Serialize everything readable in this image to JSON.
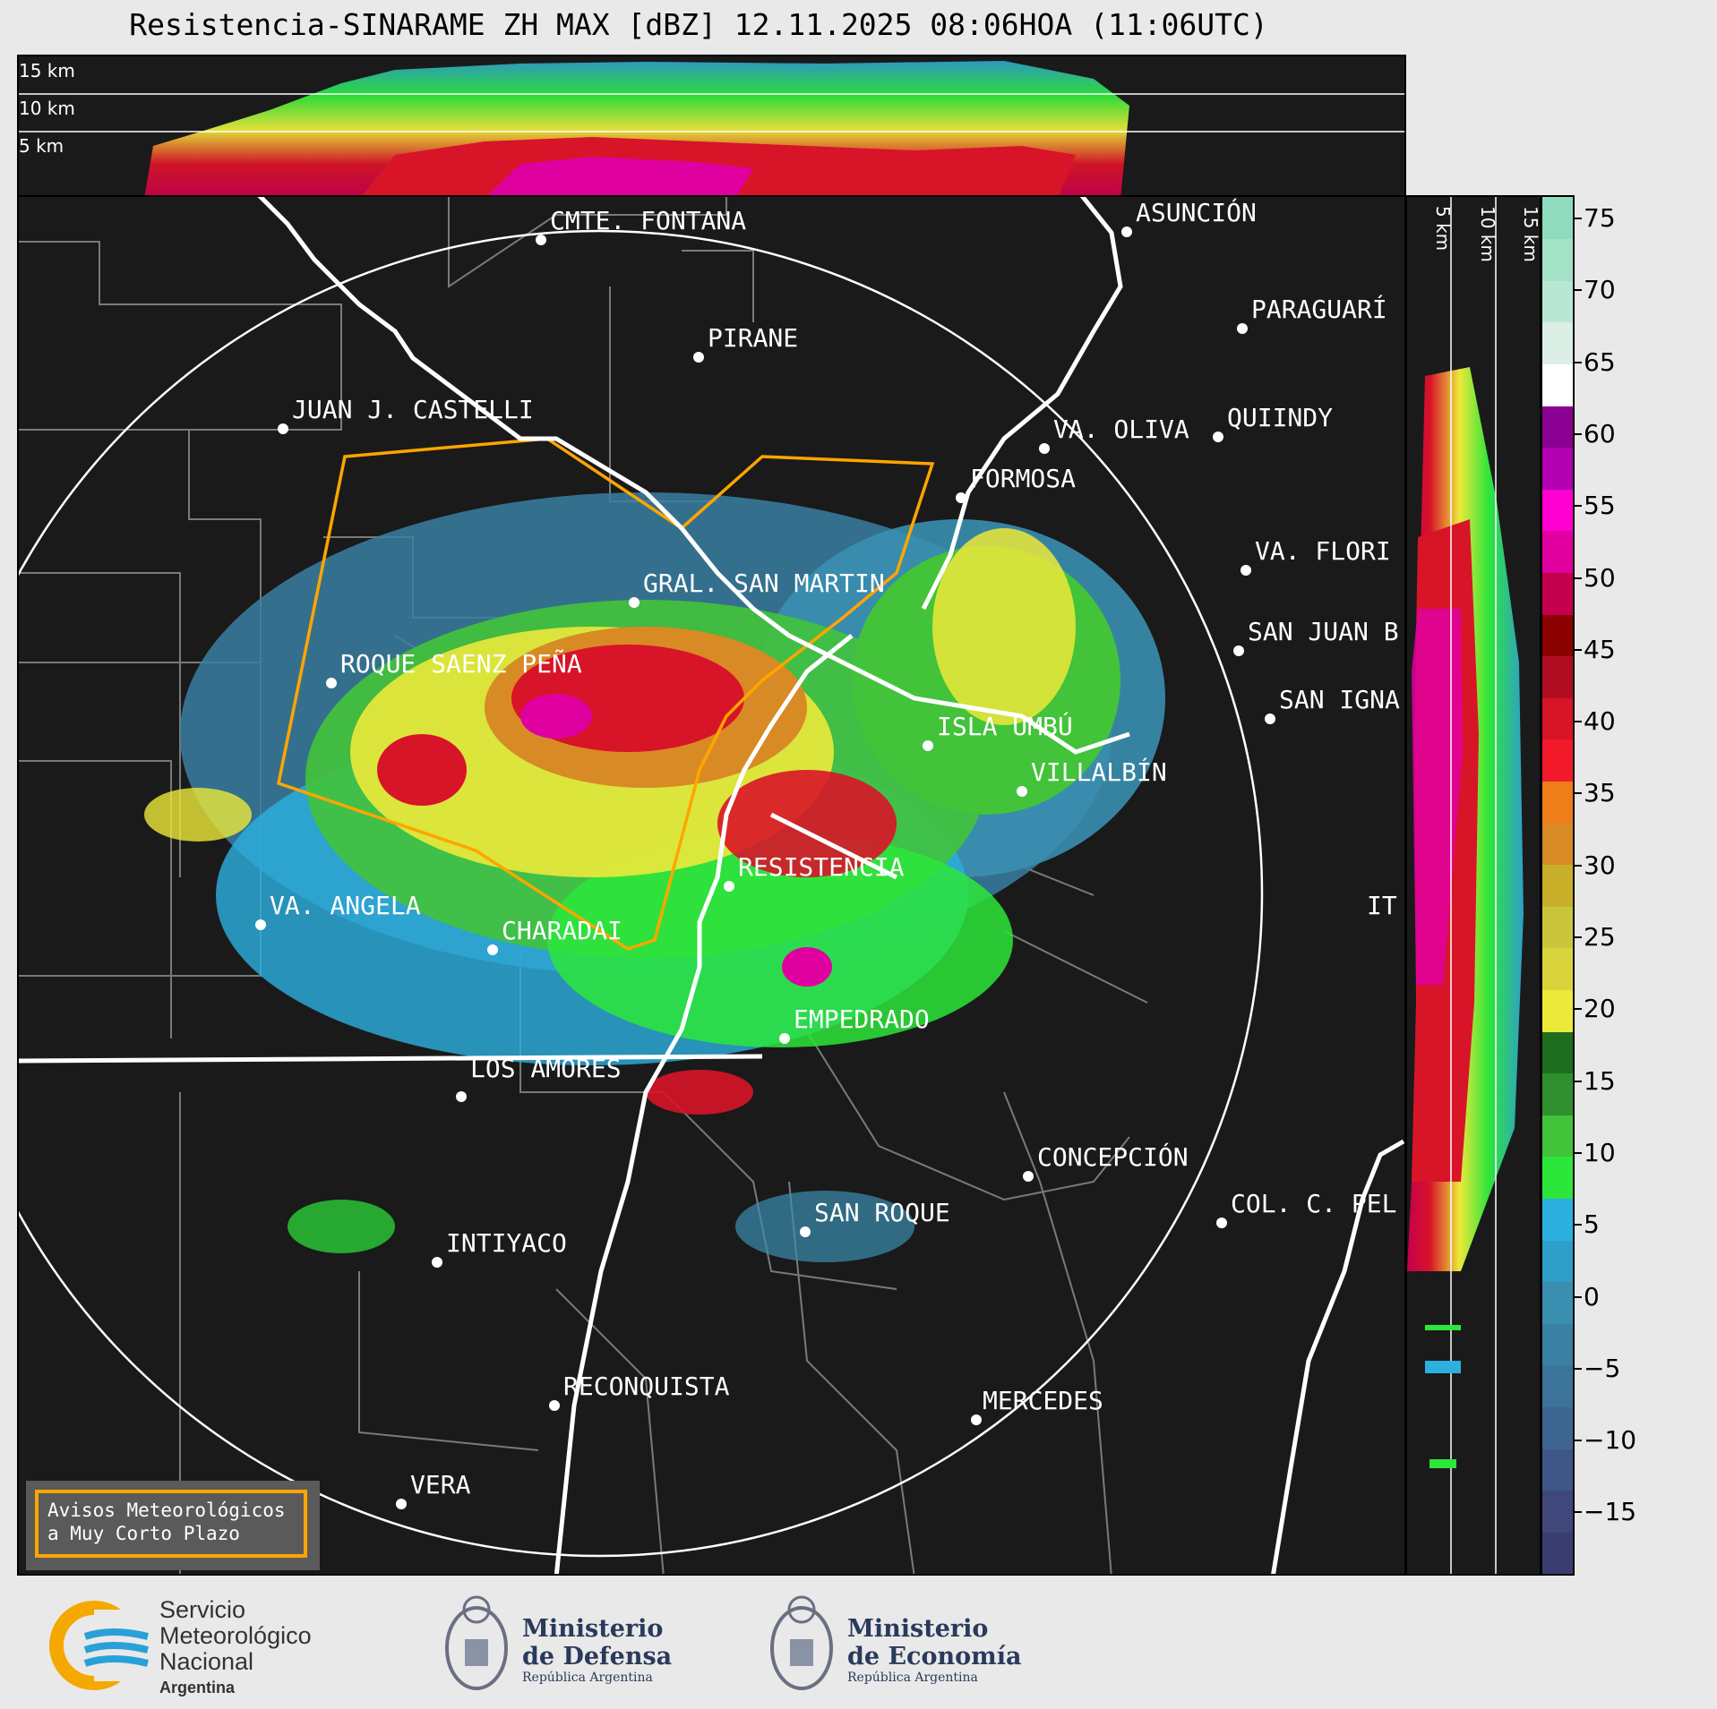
{
  "title": "Resistencia-SINARAME ZH MAX [dBZ] 12.11.2025 08:06HOA (11:06UTC)",
  "top_panel": {
    "height_labels": [
      "15 km",
      "10 km",
      "5 km"
    ]
  },
  "side_panel": {
    "height_labels": [
      "5 km",
      "10 km",
      "15 km"
    ]
  },
  "cities": [
    {
      "name": "CMTE. FONTANA"
    },
    {
      "name": "PIRANE"
    },
    {
      "name": "ASUNCIÓN"
    },
    {
      "name": "PARAGUARÍ"
    },
    {
      "name": "JUAN J. CASTELLI"
    },
    {
      "name": "VA. OLIVA"
    },
    {
      "name": "QUIINDY"
    },
    {
      "name": "FORMOSA"
    },
    {
      "name": "VA. FLORI"
    },
    {
      "name": "GRAL. SAN MARTIN"
    },
    {
      "name": "SAN JUAN B"
    },
    {
      "name": "ROQUE SAENZ PEÑA"
    },
    {
      "name": "SAN IGNA"
    },
    {
      "name": "ISLA UMBÚ"
    },
    {
      "name": "VILLALBÍN"
    },
    {
      "name": "RESISTENCIA"
    },
    {
      "name": "VA. ANGELA"
    },
    {
      "name": "CHARADAI"
    },
    {
      "name": "IT"
    },
    {
      "name": "EMPEDRADO"
    },
    {
      "name": "LOS AMORES"
    },
    {
      "name": "CONCEPCIÓN"
    },
    {
      "name": "SAN ROQUE"
    },
    {
      "name": "COL. C. PEL"
    },
    {
      "name": "INTIYACO"
    },
    {
      "name": "RECONQUISTA"
    },
    {
      "name": "MERCEDES"
    },
    {
      "name": "VERA"
    }
  ],
  "legend_box": {
    "line1": "Avisos Meteorológicos",
    "line2": "a Muy Corto Plazo"
  },
  "colorbar": {
    "unit": "dBZ",
    "ticks": [
      "75",
      "70",
      "65",
      "60",
      "55",
      "50",
      "45",
      "40",
      "35",
      "30",
      "25",
      "20",
      "15",
      "10",
      "5",
      "0",
      "−5",
      "−10",
      "−15"
    ],
    "colors": [
      "#3b3d6e",
      "#40477a",
      "#3e5787",
      "#3d6590",
      "#3b7399",
      "#3a80a2",
      "#3a8fb0",
      "#2f9fc9",
      "#2cb0e0",
      "#2de63a",
      "#42c33a",
      "#2f8f2f",
      "#1f6e1f",
      "#ece93a",
      "#d9d43c",
      "#c9c63e",
      "#c8b02a",
      "#d88a25",
      "#ee7e1a",
      "#f21a2a",
      "#d81428",
      "#b00d22",
      "#8b0000",
      "#c4004d",
      "#e000a0",
      "#ff00d0",
      "#b000b0",
      "#8a0090",
      "#ffffff",
      "#dcefe6",
      "#b8e8d3",
      "#a4e2c8",
      "#8edcbd"
    ]
  },
  "logos": {
    "smn": {
      "line1": "Servicio",
      "line2": "Meteorológico",
      "line3": "Nacional",
      "line4": "Argentina"
    },
    "defensa": {
      "line1": "Ministerio",
      "line2": "de Defensa",
      "line3": "República Argentina"
    },
    "economia": {
      "line1": "Ministerio",
      "line2": "de Economía",
      "line3": "República Argentina"
    }
  },
  "colors": {
    "background": "#1a1a1a",
    "warning_polygon": "#ffa500",
    "river": "#ffffff",
    "border": "#7a7a7a"
  }
}
